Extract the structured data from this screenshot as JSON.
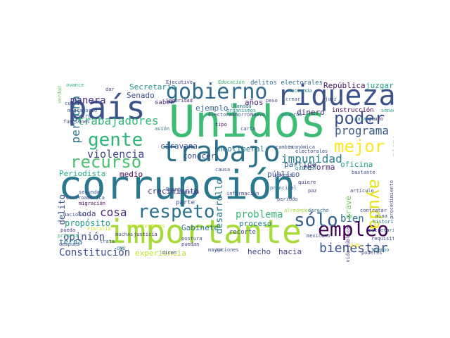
{
  "words": [
    {
      "text": "corrupción",
      "color": "#2a788e"
    },
    {
      "text": "Unidos",
      "color": "#3dbc74"
    },
    {
      "text": "país",
      "color": "#3b528b"
    },
    {
      "text": "importante",
      "color": "#a5db36"
    },
    {
      "text": "riqueza",
      "color": "#3b528b"
    },
    {
      "text": "trabajo",
      "color": "#2d708e"
    },
    {
      "text": "gobierno",
      "color": "#2f6b8e"
    },
    {
      "text": "empleo",
      "color": "#440154"
    },
    {
      "text": "gente",
      "color": "#2fb47c"
    },
    {
      "text": "respeto",
      "color": "#2c728e"
    },
    {
      "text": "recurso",
      "color": "#4ac16d"
    },
    {
      "text": "mejor",
      "color": "#fde725"
    },
    {
      "text": "poder",
      "color": "#3b528b"
    },
    {
      "text": "ayuda",
      "color": "#e5e419"
    },
    {
      "text": "sólo",
      "color": "#34618d"
    },
    {
      "text": "bienestar",
      "color": "#3a548c"
    },
    {
      "text": "trabajadores",
      "color": "#31b57b"
    },
    {
      "text": "programa",
      "color": "#375b8d"
    },
    {
      "text": "impunidad",
      "color": "#287d8e"
    },
    {
      "text": "violencia",
      "color": "#3f4788"
    },
    {
      "text": "persona",
      "color": "#2a768e"
    },
    {
      "text": "manera",
      "color": "#46307e"
    },
    {
      "text": "cosa",
      "color": "#472d7b"
    },
    {
      "text": "problema",
      "color": "#35b779"
    },
    {
      "text": "opinión",
      "color": "#3e4c8a"
    },
    {
      "text": "Constitución",
      "color": "#3e4a89"
    },
    {
      "text": "bien",
      "color": "#2e6f8e"
    },
    {
      "text": "desarrollo",
      "color": "#287c8e"
    },
    {
      "text": "neoliberal",
      "color": "#2a778e"
    },
    {
      "text": "oficina",
      "color": "#1fa187"
    },
    {
      "text": "Secretaría",
      "color": "#21918c"
    },
    {
      "text": "República",
      "color": "#481668"
    },
    {
      "text": "juzgar",
      "color": "#1f9e89"
    },
    {
      "text": "Senado",
      "color": "#3d4d8a"
    },
    {
      "text": "experiencia",
      "color": "#bddf26"
    },
    {
      "text": "Periodista",
      "color": "#29af7f"
    },
    {
      "text": "crecimiento",
      "color": "#443983"
    },
    {
      "text": "caravana",
      "color": "#3b528b"
    },
    {
      "text": "medio",
      "color": "#440154"
    },
    {
      "text": "delito",
      "color": "#3b528b"
    },
    {
      "text": "toda",
      "color": "#424186"
    },
    {
      "text": "propósito",
      "color": "#1e9c89"
    },
    {
      "text": "Gabinete",
      "color": "#2c738e"
    },
    {
      "text": "proceso",
      "color": "#26828e"
    },
    {
      "text": "partido",
      "color": "#33638d"
    },
    {
      "text": "reforma",
      "color": "#482173"
    },
    {
      "text": "hacia",
      "color": "#433e85"
    },
    {
      "text": "hecho",
      "color": "#404688"
    },
    {
      "text": "grave",
      "color": "#6ece58"
    },
    {
      "text": "público",
      "color": "#3b528b"
    },
    {
      "text": "conocer",
      "color": "#3e4989"
    },
    {
      "text": "dinero",
      "color": "#482878"
    },
    {
      "text": "terna",
      "color": "#2a788e"
    },
    {
      "text": "años",
      "color": "#482677"
    },
    {
      "text": "ejemplo",
      "color": "#31688e"
    },
    {
      "text": "mismo",
      "color": "#67cc5c"
    },
    {
      "text": "instrucción",
      "color": "#440154"
    },
    {
      "text": "delitos electorales",
      "color": "#2d708e"
    },
    {
      "text": "parte",
      "color": "#3b528b"
    },
    {
      "text": "recorte",
      "color": "#3e4a89"
    },
    {
      "text": "saber",
      "color": "#482475"
    },
    {
      "text": "Ejecutivo",
      "color": "#433e85"
    },
    {
      "text": "Educación",
      "color": "#35b779"
    },
    {
      "text": "Seguridad",
      "color": "#46337f"
    },
    {
      "text": "Hacienda",
      "color": "#24868e"
    },
    {
      "text": "llamada",
      "color": "#2e6e8e"
    },
    {
      "text": "organismos",
      "color": "#1f948c"
    },
    {
      "text": "tipo",
      "color": "#471365"
    },
    {
      "text": "avance",
      "color": "#2fb47c"
    },
    {
      "text": "verdad",
      "color": "#6ccd5a"
    },
    {
      "text": "migratorio",
      "color": "#3b528b"
    },
    {
      "text": "maestro",
      "color": "#3b528b"
    },
    {
      "text": "funciones",
      "color": "#3e4a89"
    },
    {
      "text": "avión",
      "color": "#2a788e"
    },
    {
      "text": "muchas",
      "color": "#3e4c8a"
    },
    {
      "text": "justicia",
      "color": "#482878"
    },
    {
      "text": "ONU",
      "color": "#2a788e"
    },
    {
      "text": "mayor",
      "color": "#39568c"
    },
    {
      "text": "opciones",
      "color": "#3b528b"
    },
    {
      "text": "tiempo",
      "color": "#2c728e"
    },
    {
      "text": "debe",
      "color": "#fde725"
    },
    {
      "text": "requisito",
      "color": "#3e4a89"
    },
    {
      "text": "secretaria",
      "color": "#39568c"
    },
    {
      "text": "trata",
      "color": "#38598c"
    },
    {
      "text": "Fiscalía",
      "color": "#d2e21b"
    },
    {
      "text": "pueda",
      "color": "#453882"
    },
    {
      "text": "segunda",
      "color": "#39568c"
    },
    {
      "text": "Centroamérica",
      "color": "#3e4a89"
    },
    {
      "text": "migración",
      "color": "#440154"
    },
    {
      "text": "cuentas",
      "color": "#414487"
    },
    {
      "text": "postura",
      "color": "#3e4989"
    },
    {
      "text": "puedan",
      "color": "#424086"
    },
    {
      "text": "conservadores",
      "color": "#c8e020"
    },
    {
      "text": "dicen",
      "color": "#3e4c8a"
    },
    {
      "text": "información",
      "color": "#3e4a89"
    },
    {
      "text": "periodo",
      "color": "#3a548c"
    },
    {
      "text": "principal",
      "color": "#31688e"
    },
    {
      "text": "paz",
      "color": "#3e4a89"
    },
    {
      "text": "quiere",
      "color": "#443a83"
    },
    {
      "text": "quieren",
      "color": "#26828e"
    },
    {
      "text": "mexicano",
      "color": "#3b528b"
    },
    {
      "text": "derecho",
      "color": "#2f6c8e"
    },
    {
      "text": "alrededor",
      "color": "#a0da39"
    },
    {
      "text": "historia",
      "color": "#287c8e"
    },
    {
      "text": "artículo",
      "color": "#404688"
    },
    {
      "text": "contratar",
      "color": "#424086"
    },
    {
      "text": "mina",
      "color": "#3b528b"
    },
    {
      "text": "vida pública",
      "color": "#482878"
    },
    {
      "text": "procedimiento",
      "color": "#3e4a89"
    },
    {
      "text": "bastante",
      "color": "#3b528b"
    },
    {
      "text": "grupo",
      "color": "#472c7a"
    },
    {
      "text": "económica",
      "color": "#3b528b"
    },
    {
      "text": "acuerdo",
      "color": "#2d708e"
    },
    {
      "text": "crear",
      "color": "#39568c"
    },
    {
      "text": "peso",
      "color": "#3e4c8a"
    },
    {
      "text": "juez",
      "color": "#3b528b"
    },
    {
      "text": "senadores",
      "color": "#1fa187"
    },
    {
      "text": "palabra",
      "color": "#2a788e"
    },
    {
      "text": "Electoral",
      "color": "#3e4a89"
    },
    {
      "text": "electorales",
      "color": "#3e4c8a"
    },
    {
      "text": "cambio",
      "color": "#39568c"
    },
    {
      "text": "causa",
      "color": "#3e4a89"
    },
    {
      "text": "primera",
      "color": "#2fb47c"
    },
    {
      "text": "después",
      "color": "#3b528b"
    },
    {
      "text": "dar",
      "color": "#3e4a89"
    },
    {
      "text": "sexenio",
      "color": "#3e4a89"
    },
    {
      "text": "Nacional",
      "color": "#3b528b"
    },
    {
      "text": "cuarto",
      "color": "#3e4a89"
    },
    {
      "text": "Buena",
      "color": "#3b528b"
    },
    {
      "text": "poderes",
      "color": "#3e4a89"
    },
    {
      "text": "ahorro",
      "color": "#3b528b"
    },
    {
      "text": "Nuevo",
      "color": "#3e4a89"
    },
    {
      "text": "carta",
      "color": "#3b528b"
    }
  ]
}
